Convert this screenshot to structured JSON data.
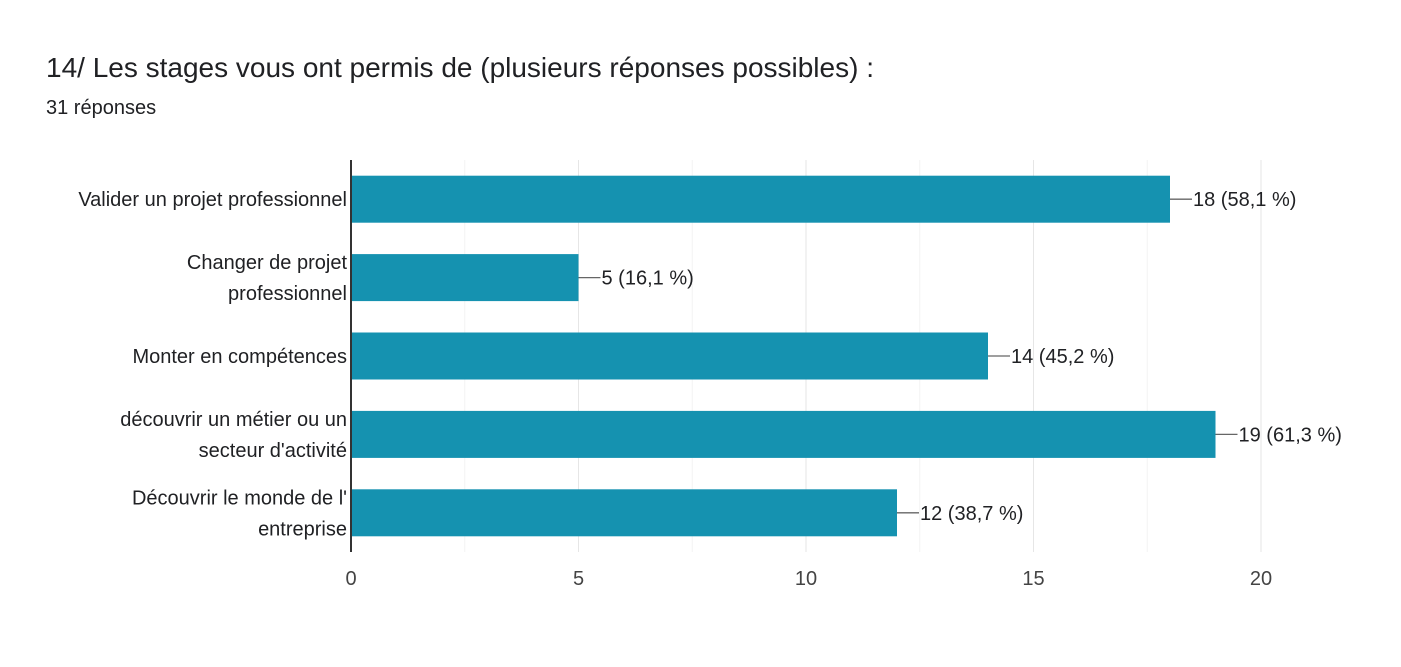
{
  "question_title": "14/ Les stages vous ont permis de (plusieurs réponses possibles) :",
  "response_count": "31 réponses",
  "colors": {
    "bar": "#1592b0",
    "grid": "#e6e6e6",
    "axis": "#333333",
    "text": "#202124"
  },
  "chart_data": {
    "type": "bar",
    "orientation": "horizontal",
    "title": "",
    "xlabel": "",
    "ylabel": "",
    "categories": [
      "Valider un projet professionnel",
      "Changer de projet professionnel",
      "Monter en compétences",
      "découvrir un métier ou un secteur d'activité",
      "Découvrir le monde de l' entreprise"
    ],
    "category_lines": [
      [
        "Valider un projet professionnel"
      ],
      [
        "Changer de projet",
        "professionnel"
      ],
      [
        "Monter en compétences"
      ],
      [
        "découvrir un métier ou un",
        "secteur d'activité"
      ],
      [
        "Découvrir le monde de l'",
        "entreprise"
      ]
    ],
    "values": [
      18,
      5,
      14,
      19,
      12
    ],
    "data_labels": [
      "18 (58,1 %)",
      "5 (16,1 %)",
      "14 (45,2 %)",
      "19 (61,3 %)",
      "12 (38,7 %)"
    ],
    "xlim": [
      0,
      20
    ],
    "xticks": [
      0,
      5,
      10,
      15,
      20
    ],
    "grid": true,
    "legend": "none"
  }
}
